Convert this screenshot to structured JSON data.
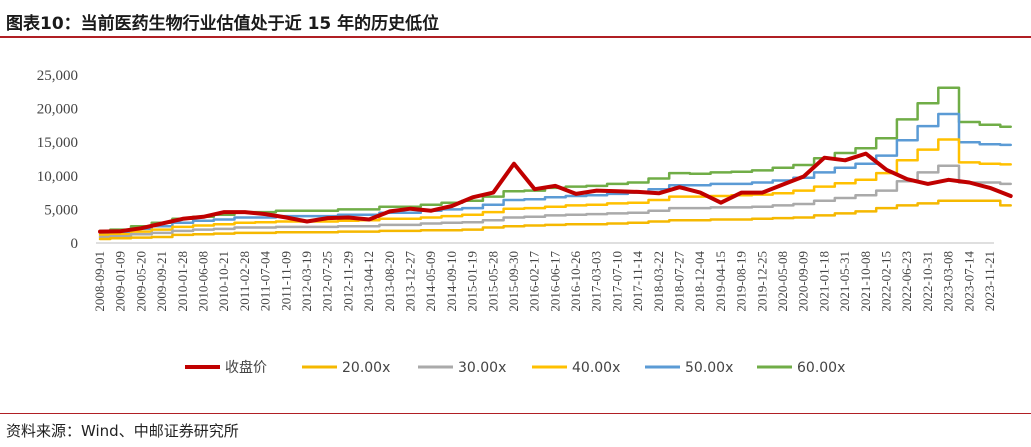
{
  "header": {
    "title": "图表10：当前医药生物行业估值处于近 15 年的历史低位"
  },
  "footer": {
    "source": "资料来源：Wind、中邮证券研究所"
  },
  "colors": {
    "accent_rule": "#b01f24",
    "close": "#c00000",
    "pe20": "#f5b800",
    "pe30": "#aaaaaa",
    "pe40": "#ffc000",
    "pe50": "#5b9bd5",
    "pe60": "#70ad47"
  },
  "chart_data": {
    "type": "line",
    "title": "",
    "xlabel": "",
    "ylabel": "",
    "ylim": [
      0,
      25000
    ],
    "y_ticks": [
      "0",
      "5,000",
      "10,000",
      "15,000",
      "20,000",
      "25,000"
    ],
    "x_ticks": [
      "2008-09-01",
      "2009-01-09",
      "2009-05-20",
      "2009-09-21",
      "2010-01-28",
      "2010-06-08",
      "2010-10-21",
      "2011-02-28",
      "2011-07-04",
      "2011-11-09",
      "2012-03-19",
      "2012-07-25",
      "2012-11-29",
      "2013-04-12",
      "2013-08-20",
      "2013-12-27",
      "2014-05-09",
      "2014-09-10",
      "2015-01-19",
      "2015-05-28",
      "2015-09-30",
      "2016-02-17",
      "2016-06-17",
      "2016-10-26",
      "2017-03-03",
      "2017-07-10",
      "2017-11-14",
      "2018-03-22",
      "2018-07-27",
      "2018-12-04",
      "2019-04-15",
      "2019-08-19",
      "2019-12-25",
      "2020-05-08",
      "2020-09-09",
      "2021-01-18",
      "2021-05-31",
      "2021-10-08",
      "2022-02-15",
      "2022-06-23",
      "2022-10-31",
      "2023-03-08",
      "2023-07-14",
      "2023-11-21"
    ],
    "grid": false,
    "legend_position": "bottom",
    "series": [
      {
        "name": "收盘价",
        "key": "close",
        "width": 4,
        "values": [
          1700,
          1750,
          2200,
          2900,
          3600,
          3900,
          4600,
          4600,
          4300,
          3800,
          3200,
          3700,
          3800,
          3500,
          4700,
          5100,
          4800,
          5500,
          6800,
          7500,
          11800,
          8000,
          8500,
          7300,
          7800,
          7700,
          7600,
          7400,
          8300,
          7500,
          6000,
          7500,
          7500,
          8700,
          9900,
          12700,
          12300,
          13300,
          10900,
          9500,
          8800,
          9400,
          9000,
          8200,
          7000
        ]
      },
      {
        "name": "20.00x",
        "key": "pe20",
        "width": 2.5,
        "values": [
          600,
          700,
          800,
          900,
          1200,
          1300,
          1400,
          1500,
          1500,
          1600,
          1600,
          1600,
          1700,
          1700,
          1800,
          1800,
          1900,
          1900,
          2000,
          2300,
          2500,
          2600,
          2700,
          2800,
          2800,
          2900,
          3000,
          3200,
          3400,
          3400,
          3500,
          3500,
          3600,
          3700,
          3800,
          4100,
          4400,
          4700,
          5200,
          5600,
          5900,
          6300,
          6300,
          6300,
          5600
        ]
      },
      {
        "name": "30.00x",
        "key": "pe30",
        "width": 2.5,
        "values": [
          900,
          1000,
          1300,
          1500,
          1800,
          2000,
          2100,
          2300,
          2300,
          2400,
          2400,
          2400,
          2500,
          2500,
          2700,
          2700,
          2900,
          3000,
          3100,
          3400,
          3800,
          3900,
          4100,
          4200,
          4300,
          4400,
          4500,
          4800,
          5200,
          5200,
          5300,
          5300,
          5400,
          5600,
          5800,
          6300,
          6700,
          7100,
          7800,
          9200,
          10500,
          11500,
          9000,
          9000,
          8800
        ]
      },
      {
        "name": "40.00x",
        "key": "pe40",
        "width": 2.5,
        "values": [
          1200,
          1300,
          1700,
          2000,
          2400,
          2600,
          2800,
          3000,
          3100,
          3200,
          3200,
          3200,
          3300,
          3400,
          3600,
          3600,
          3800,
          4000,
          4200,
          4600,
          5100,
          5200,
          5400,
          5600,
          5700,
          5900,
          6000,
          6400,
          6900,
          6900,
          7000,
          7100,
          7200,
          7400,
          7800,
          8400,
          8900,
          9400,
          10400,
          12300,
          13900,
          15400,
          12000,
          11800,
          11700
        ]
      },
      {
        "name": "50.00x",
        "key": "pe50",
        "width": 2.5,
        "values": [
          1500,
          1600,
          2100,
          2500,
          3000,
          3300,
          3500,
          3800,
          3800,
          4000,
          4000,
          4000,
          4200,
          4200,
          4500,
          4500,
          4800,
          5000,
          5200,
          5700,
          6400,
          6500,
          6800,
          7000,
          7100,
          7300,
          7500,
          8000,
          8600,
          8600,
          8800,
          8800,
          9000,
          9300,
          9700,
          10500,
          11200,
          11800,
          13000,
          15300,
          17400,
          19200,
          15000,
          14700,
          14600
        ]
      },
      {
        "name": "60.00x",
        "key": "pe60",
        "width": 2.5,
        "values": [
          1800,
          2000,
          2500,
          3000,
          3600,
          3900,
          4200,
          4600,
          4600,
          4800,
          4800,
          4800,
          5000,
          5000,
          5400,
          5400,
          5700,
          6000,
          6300,
          6900,
          7700,
          7800,
          8200,
          8400,
          8500,
          8800,
          9000,
          9600,
          10400,
          10300,
          10500,
          10600,
          10800,
          11200,
          11600,
          12600,
          13400,
          14100,
          15600,
          18400,
          20800,
          23100,
          18000,
          17600,
          17300
        ]
      }
    ]
  }
}
